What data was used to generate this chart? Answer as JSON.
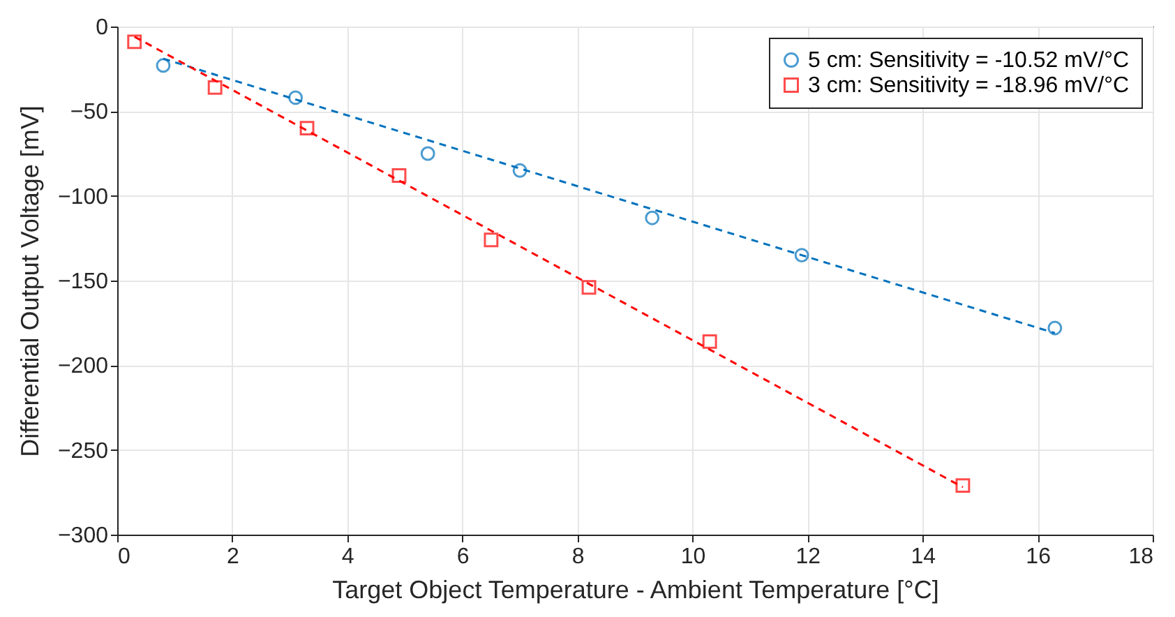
{
  "chart_data": {
    "type": "scatter",
    "xlabel": "Target Object Temperature - Ambient Temperature [°C]",
    "ylabel": "Differential Output Voltage [mV]",
    "xlim": [
      0,
      18
    ],
    "xticks": [
      0,
      2,
      4,
      6,
      8,
      10,
      12,
      14,
      16,
      18
    ],
    "ylim": [
      -300,
      0
    ],
    "yticks": [
      -300,
      -250,
      -200,
      -150,
      -100,
      -50,
      0
    ],
    "grid": true,
    "legend": "top right",
    "series": [
      {
        "name": "5 cm: Sensitivity = -10.52 mV/°C",
        "color": "#0072bd",
        "marker": "circle",
        "x": [
          0.8,
          3.1,
          5.4,
          7.0,
          9.3,
          11.9,
          16.3
        ],
        "values": [
          -23,
          -42,
          -75,
          -85,
          -113,
          -135,
          -178
        ]
      },
      {
        "name": "3 cm: Sensitivity = -18.96 mV/°C",
        "color": "#ff0000",
        "marker": "square",
        "x": [
          0.3,
          1.7,
          3.3,
          4.9,
          6.5,
          8.2,
          10.3,
          14.7
        ],
        "values": [
          -9,
          -36,
          -60,
          -88,
          -126,
          -154,
          -186,
          -271
        ]
      },
      {
        "type": "line",
        "color": "#0072bd",
        "line_style": "dashed",
        "x": [
          0.8,
          16.3
        ],
        "values": [
          -19,
          -181
        ]
      },
      {
        "type": "line",
        "color": "#ff0000",
        "line_style": "dashed",
        "x": [
          0.3,
          14.7
        ],
        "values": [
          -6,
          -272
        ]
      }
    ]
  }
}
